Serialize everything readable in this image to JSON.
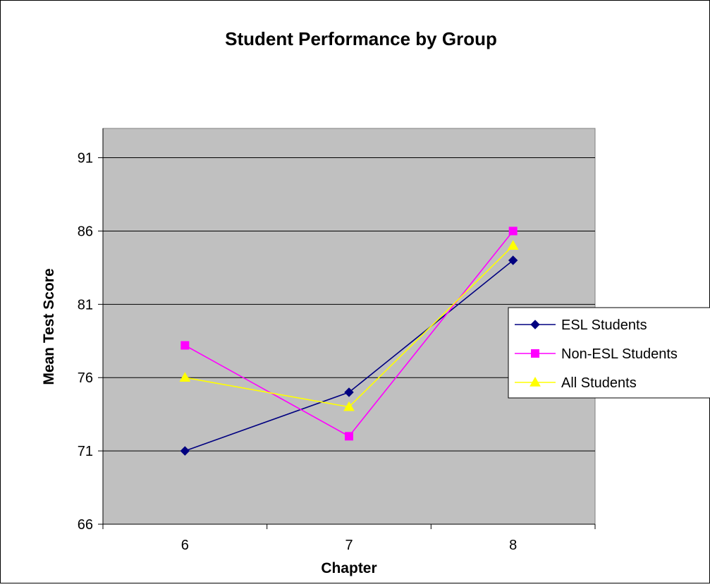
{
  "chart_data": {
    "type": "line",
    "title": "Student Performance by Group",
    "xlabel": "Chapter",
    "ylabel": "Mean Test Score",
    "categories": [
      "6",
      "7",
      "8"
    ],
    "ylim": [
      66,
      93
    ],
    "yticks": [
      66,
      71,
      76,
      81,
      86,
      91
    ],
    "grid": true,
    "legend_position": "right",
    "plot_background": "#c0c0c0",
    "series": [
      {
        "name": "ESL Students",
        "values": [
          71,
          75,
          84
        ],
        "color": "#000080",
        "marker": "diamond"
      },
      {
        "name": "Non-ESL Students",
        "values": [
          78.2,
          72,
          86
        ],
        "color": "#ff00ff",
        "marker": "square"
      },
      {
        "name": "All Students",
        "values": [
          76,
          74,
          85
        ],
        "color": "#ffff00",
        "marker": "triangle"
      }
    ]
  }
}
